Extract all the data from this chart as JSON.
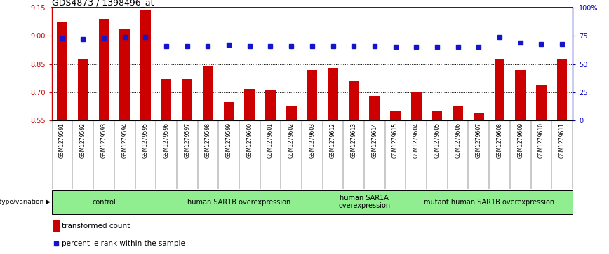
{
  "title": "GDS4873 / 1398496_at",
  "samples": [
    "GSM1279591",
    "GSM1279592",
    "GSM1279593",
    "GSM1279594",
    "GSM1279595",
    "GSM1279596",
    "GSM1279597",
    "GSM1279598",
    "GSM1279599",
    "GSM1279600",
    "GSM1279601",
    "GSM1279602",
    "GSM1279603",
    "GSM1279612",
    "GSM1279613",
    "GSM1279614",
    "GSM1279615",
    "GSM1279604",
    "GSM1279605",
    "GSM1279606",
    "GSM1279607",
    "GSM1279608",
    "GSM1279609",
    "GSM1279610",
    "GSM1279611"
  ],
  "bar_values": [
    9.07,
    8.88,
    9.09,
    9.04,
    9.14,
    8.77,
    8.77,
    8.84,
    8.65,
    8.72,
    8.71,
    8.63,
    8.82,
    8.83,
    8.76,
    8.68,
    8.6,
    8.7,
    8.6,
    8.63,
    8.59,
    8.88,
    8.82,
    8.74,
    8.88
  ],
  "percentile_values": [
    73,
    72,
    73,
    74,
    74,
    66,
    66,
    66,
    67,
    66,
    66,
    66,
    66,
    66,
    66,
    66,
    65,
    65,
    65,
    65,
    65,
    74,
    69,
    68,
    68
  ],
  "ylim_left": [
    8.55,
    9.15
  ],
  "ylim_right": [
    0,
    100
  ],
  "yticks_left": [
    8.55,
    8.7,
    8.85,
    9.0,
    9.15
  ],
  "yticks_right_vals": [
    0,
    25,
    50,
    75,
    100
  ],
  "yticks_right_labels": [
    "0",
    "25",
    "50",
    "75",
    "100%"
  ],
  "grid_yticks": [
    8.55,
    8.7,
    8.85,
    9.0
  ],
  "groups": [
    {
      "label": "control",
      "start": 0,
      "end": 4
    },
    {
      "label": "human SAR1B overexpression",
      "start": 5,
      "end": 12
    },
    {
      "label": "human SAR1A\noverexpression",
      "start": 13,
      "end": 16
    },
    {
      "label": "mutant human SAR1B overexpression",
      "start": 17,
      "end": 24
    }
  ],
  "bar_color": "#CC0000",
  "dot_color": "#1414CC",
  "bar_width": 0.5,
  "marker_size": 4,
  "tick_label_color_left": "#CC0000",
  "tick_label_color_right": "#0000BB",
  "spine_color_left": "#CC0000",
  "spine_color_right": "#0000BB",
  "group_fill": "#90EE90",
  "group_edge": "#000000",
  "sample_bg": "#C0C0C0",
  "legend_bar_label": "transformed count",
  "legend_dot_label": "percentile rank within the sample",
  "left_label": "genotype/variation"
}
